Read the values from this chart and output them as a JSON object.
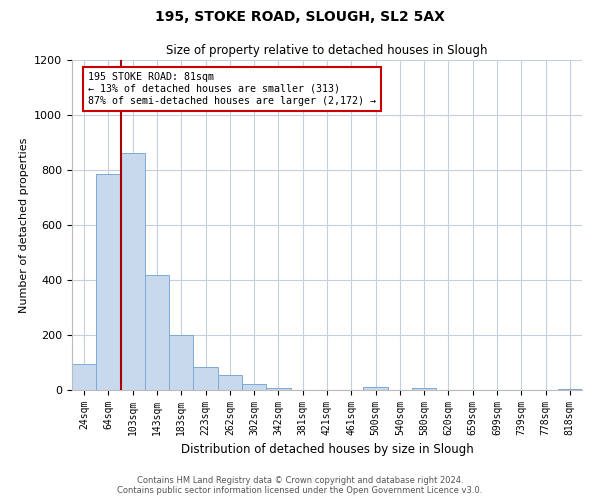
{
  "title_line1": "195, STOKE ROAD, SLOUGH, SL2 5AX",
  "title_line2": "Size of property relative to detached houses in Slough",
  "xlabel": "Distribution of detached houses by size in Slough",
  "ylabel": "Number of detached properties",
  "bar_labels": [
    "24sqm",
    "64sqm",
    "103sqm",
    "143sqm",
    "183sqm",
    "223sqm",
    "262sqm",
    "302sqm",
    "342sqm",
    "381sqm",
    "421sqm",
    "461sqm",
    "500sqm",
    "540sqm",
    "580sqm",
    "620sqm",
    "659sqm",
    "699sqm",
    "739sqm",
    "778sqm",
    "818sqm"
  ],
  "bar_values": [
    95,
    785,
    860,
    420,
    200,
    85,
    55,
    22,
    8,
    0,
    0,
    0,
    10,
    0,
    8,
    0,
    0,
    0,
    0,
    0,
    5
  ],
  "bar_color": "#c8d9ee",
  "bar_edge_color": "#7baad4",
  "property_line_x": 1.5,
  "property_line_color": "#aa0000",
  "annotation_text": "195 STOKE ROAD: 81sqm\n← 13% of detached houses are smaller (313)\n87% of semi-detached houses are larger (2,172) →",
  "annotation_box_color": "#ffffff",
  "annotation_box_edge_color": "#cc0000",
  "ylim": [
    0,
    1200
  ],
  "yticks": [
    0,
    200,
    400,
    600,
    800,
    1000,
    1200
  ],
  "footer_line1": "Contains HM Land Registry data © Crown copyright and database right 2024.",
  "footer_line2": "Contains public sector information licensed under the Open Government Licence v3.0.",
  "background_color": "#ffffff",
  "grid_color": "#c5cfe0"
}
